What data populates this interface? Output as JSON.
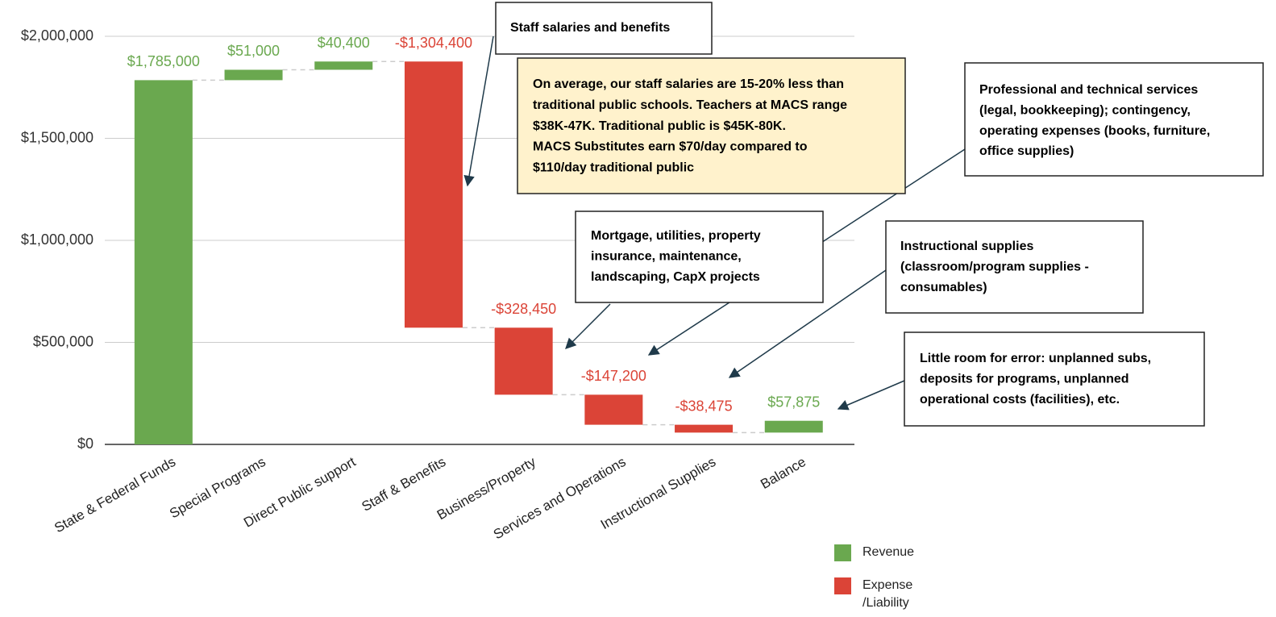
{
  "chart_data": {
    "type": "waterfall",
    "categories": [
      "State & Federal Funds",
      "Special Programs",
      "Direct Public support",
      "Staff & Benefits",
      "Business/Property",
      "Services and Operations",
      "Instructional Supplies",
      "Balance"
    ],
    "values": [
      1785000,
      51000,
      40400,
      -1304400,
      -328450,
      -147200,
      -38475,
      57875
    ],
    "value_labels": [
      "$1,785,000",
      "$51,000",
      "$40,400",
      "-$1,304,400",
      "-$328,450",
      "-$147,200",
      "-$38,475",
      "$57,875"
    ],
    "positive_color": "#6aa84f",
    "negative_color": "#db4437",
    "ylim": [
      0,
      2000000
    ],
    "yticks": [
      {
        "value": 0,
        "label": "$0"
      },
      {
        "value": 500000,
        "label": "$500,000"
      },
      {
        "value": 1000000,
        "label": "$1,000,000"
      },
      {
        "value": 1500000,
        "label": "$1,500,000"
      },
      {
        "value": 2000000,
        "label": "$2,000,000"
      }
    ],
    "grid": true,
    "legend": [
      {
        "name": "Revenue",
        "color": "#6aa84f"
      },
      {
        "name": "Expense /Liability",
        "color": "#db4437"
      }
    ],
    "legend_position": "bottom-right",
    "annotations": [
      {
        "lines": [
          "Staff salaries and benefits"
        ]
      },
      {
        "lines": [
          "On average, our staff salaries are 15-20% less than",
          "traditional public schools. Teachers at MACS range",
          "$38K-47K. Traditional public is $45K-80K.",
          "MACS Substitutes earn $70/day compared to",
          "$110/day traditional public"
        ]
      },
      {
        "lines": [
          "Professional and technical services",
          "(legal, bookkeeping); contingency,",
          "operating expenses (books, furniture,",
          "office supplies)"
        ]
      },
      {
        "lines": [
          "Mortgage, utilities, property",
          "insurance, maintenance,",
          "landscaping, CapX projects"
        ]
      },
      {
        "lines": [
          "Instructional supplies",
          "(classroom/program supplies -",
          "consumables)"
        ]
      },
      {
        "lines": [
          "Little room for error: unplanned subs,",
          "deposits for programs, unplanned",
          "operational costs (facilities), etc."
        ]
      }
    ]
  }
}
